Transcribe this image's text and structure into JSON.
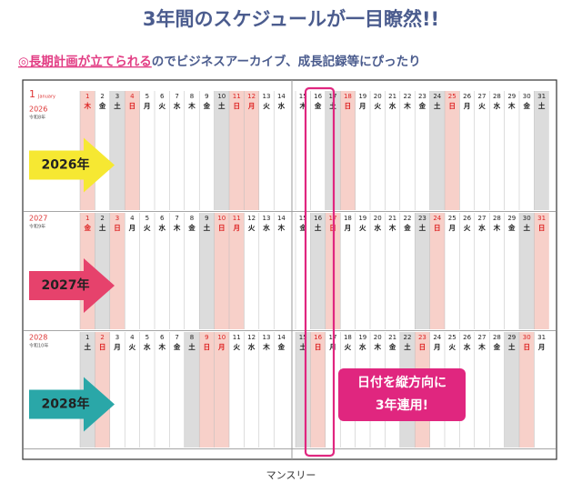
{
  "header": {
    "title": "3年間のスケジュールが一目瞭然!!",
    "subtitle_highlight": "◎長期計画が立てられる",
    "subtitle_rest": "のでビジネスアーカイブ、成長記録等にぴったり"
  },
  "planner": {
    "month": "1",
    "month_name": "January",
    "day_numbers": [
      1,
      2,
      3,
      4,
      5,
      6,
      7,
      8,
      9,
      10,
      11,
      12,
      13,
      14,
      15,
      16,
      17,
      18,
      19,
      20,
      21,
      22,
      23,
      24,
      25,
      26,
      27,
      28,
      29,
      30,
      31
    ],
    "years": [
      {
        "year": "2026",
        "era": "令和8年",
        "arrow_label": "2026年",
        "arrow_color": "#f6e832",
        "arrow_text_color": "#222222",
        "weekdays": [
          "木",
          "金",
          "土",
          "日",
          "月",
          "火",
          "水",
          "木",
          "金",
          "土",
          "日",
          "月",
          "火",
          "水",
          "木",
          "金",
          "土",
          "日",
          "月",
          "火",
          "水",
          "木",
          "金",
          "土",
          "日",
          "月",
          "火",
          "水",
          "木",
          "金",
          "土"
        ],
        "saturdays": [
          3,
          10,
          17,
          24,
          31
        ],
        "red_days": [
          1,
          4,
          11,
          12,
          18,
          25
        ]
      },
      {
        "year": "2027",
        "era": "令和9年",
        "arrow_label": "2027年",
        "arrow_color": "#e6426c",
        "arrow_text_color": "#222222",
        "weekdays": [
          "金",
          "土",
          "日",
          "月",
          "火",
          "水",
          "木",
          "金",
          "土",
          "日",
          "月",
          "火",
          "水",
          "木",
          "金",
          "土",
          "日",
          "月",
          "火",
          "水",
          "木",
          "金",
          "土",
          "日",
          "月",
          "火",
          "水",
          "木",
          "金",
          "土",
          "日"
        ],
        "saturdays": [
          2,
          9,
          16,
          23,
          30
        ],
        "red_days": [
          1,
          3,
          10,
          11,
          17,
          24,
          31
        ]
      },
      {
        "year": "2028",
        "era": "令和10年",
        "arrow_label": "2028年",
        "arrow_color": "#2aa7a8",
        "arrow_text_color": "#222222",
        "weekdays": [
          "土",
          "日",
          "月",
          "火",
          "水",
          "木",
          "金",
          "土",
          "日",
          "月",
          "火",
          "水",
          "木",
          "金",
          "土",
          "日",
          "月",
          "火",
          "水",
          "木",
          "金",
          "土",
          "日",
          "月",
          "火",
          "水",
          "木",
          "金",
          "土",
          "日",
          "月"
        ],
        "saturdays": [
          1,
          8,
          15,
          22,
          29
        ],
        "red_days": [
          2,
          9,
          10,
          16,
          23,
          30
        ]
      }
    ]
  },
  "callout": {
    "lines": [
      "日付を縦方向に",
      "3年連用!"
    ]
  },
  "caption": "マンスリー"
}
